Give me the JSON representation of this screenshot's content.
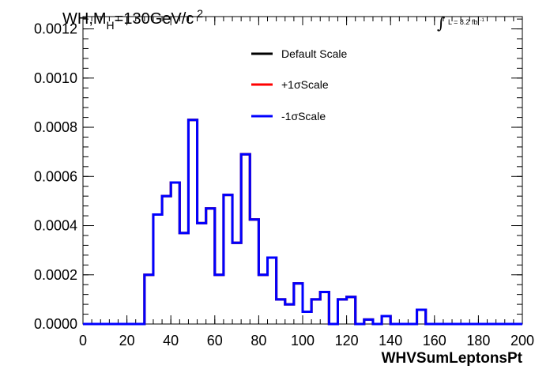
{
  "title": {
    "prefix": "WH,M",
    "sub": "H",
    "suffix": "=130GeV/c",
    "sup": "2"
  },
  "lumi": {
    "text": "L = 8.2 fb",
    "exp": "-1"
  },
  "chart_data": {
    "type": "line",
    "xlabel": "WHVSumLeptonsPt",
    "ylabel": "",
    "xlim": [
      0,
      200
    ],
    "ylim": [
      0,
      0.00125
    ],
    "bin_width": 4,
    "xticks": [
      0,
      20,
      40,
      60,
      80,
      100,
      120,
      140,
      160,
      180,
      200
    ],
    "xtick_labels": [
      "0",
      "20",
      "40",
      "60",
      "80",
      "100",
      "120",
      "140",
      "160",
      "180",
      "200"
    ],
    "yticks": [
      0,
      0.0002,
      0.0004,
      0.0006,
      0.0008,
      0.001,
      0.0012
    ],
    "ytick_labels": [
      "0.0000",
      "0.0002",
      "0.0004",
      "0.0006",
      "0.0008",
      "0.0010",
      "0.0012"
    ],
    "x": [
      0,
      4,
      8,
      12,
      16,
      20,
      24,
      28,
      32,
      36,
      40,
      44,
      48,
      52,
      56,
      60,
      64,
      68,
      72,
      76,
      80,
      84,
      88,
      92,
      96,
      100,
      104,
      108,
      112,
      116,
      120,
      124,
      128,
      132,
      136,
      140,
      144,
      148,
      152,
      156,
      160,
      164,
      168,
      172,
      176,
      180,
      184,
      188,
      192,
      196
    ],
    "legend_position": "top-center",
    "grid": false,
    "series": [
      {
        "name": "Default Scale",
        "color": "#000000",
        "values": [
          0,
          0,
          0,
          0,
          0,
          0,
          0,
          0.0002,
          0.000445,
          0.00052,
          0.000575,
          0.00037,
          0.00083,
          0.00041,
          0.00047,
          0.0002,
          0.000525,
          0.00033,
          0.00069,
          0.000425,
          0.0002,
          0.00027,
          0.0001,
          8e-05,
          0.000165,
          5e-05,
          0.0001,
          0.00013,
          0,
          0.0001,
          0.00011,
          0,
          1.8e-05,
          0,
          3.2e-05,
          0,
          0,
          0,
          5.8e-05,
          0,
          0,
          0,
          0,
          0,
          0,
          0,
          0,
          0,
          0,
          0
        ]
      },
      {
        "name": "+1σScale",
        "color": "#ff0000",
        "values": [
          0,
          0,
          0,
          0,
          0,
          0,
          0,
          0.0002,
          0.000445,
          0.00052,
          0.000575,
          0.00037,
          0.00083,
          0.00041,
          0.00047,
          0.0002,
          0.000525,
          0.00033,
          0.00069,
          0.000425,
          0.0002,
          0.00027,
          0.0001,
          8e-05,
          0.000165,
          5e-05,
          0.0001,
          0.00013,
          0,
          0.0001,
          0.00011,
          0,
          1.8e-05,
          0,
          3.2e-05,
          0,
          0,
          0,
          5.8e-05,
          0,
          0,
          0,
          0,
          0,
          0,
          0,
          0,
          0,
          0,
          0
        ]
      },
      {
        "name": "-1σScale",
        "color": "#0000ff",
        "values": [
          0,
          0,
          0,
          0,
          0,
          0,
          0,
          0.0002,
          0.000445,
          0.00052,
          0.000575,
          0.00037,
          0.00083,
          0.00041,
          0.00047,
          0.0002,
          0.000525,
          0.00033,
          0.00069,
          0.000425,
          0.0002,
          0.00027,
          0.0001,
          8e-05,
          0.000165,
          5e-05,
          0.0001,
          0.00013,
          0,
          0.0001,
          0.00011,
          0,
          1.8e-05,
          0,
          3.2e-05,
          0,
          0,
          0,
          5.8e-05,
          0,
          0,
          0,
          0,
          0,
          0,
          0,
          0,
          0,
          0,
          0
        ]
      }
    ]
  }
}
